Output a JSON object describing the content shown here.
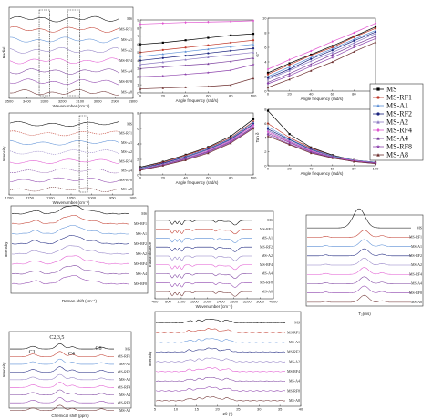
{
  "samples": [
    "MS",
    "MS-RF1",
    "MS-A1",
    "MS-RF2",
    "MS-A2",
    "MS-RF4",
    "MS-A4",
    "MS-RF8",
    "MS-A8"
  ],
  "colors": [
    "#000000",
    "#c0392b",
    "#5b8fd6",
    "#1a237e",
    "#8e7cc3",
    "#e056d0",
    "#7b3f9e",
    "#8e44ad",
    "#6d2f2f"
  ],
  "markers": [
    "square",
    "circle",
    "triangle",
    "circle",
    "triangle",
    "diamond",
    "triangle",
    "star",
    "triangle"
  ],
  "legend": {
    "entries": [
      "MS",
      "MS-RF1",
      "MS-A1",
      "MS-RF2",
      "MS-A2",
      "MS-RF4",
      "MS-A4",
      "MS-RF8",
      "MS-A8"
    ]
  },
  "chart_data": [
    {
      "id": "p1",
      "type": "line",
      "ylabel": "Radial",
      "series_labels": [
        "MS",
        "MS-RF1",
        "MS-A1",
        "MS-A2",
        "MS-RF4",
        "MS-A4",
        "MS-RF8",
        "MS-A8"
      ],
      "xlim": [
        3500,
        2800
      ],
      "xticks": [
        3500,
        3400,
        3300,
        3200,
        3100,
        3000,
        2900,
        2800
      ],
      "xlabel": "Wavenumber (cm⁻¹)",
      "highlight_boxes": [
        [
          3330,
          3270
        ],
        [
          3170,
          3100
        ]
      ]
    },
    {
      "id": "p2",
      "type": "line",
      "xlim": [
        0,
        100
      ],
      "ylim": [
        0,
        9
      ],
      "xticks": [
        0,
        20,
        40,
        60,
        80,
        100
      ],
      "yticks": [
        0,
        1,
        2,
        3,
        4,
        5,
        6,
        7,
        8,
        9
      ],
      "xlabel": "Angle frequency (rad/s)",
      "series": [
        {
          "name": "MS",
          "values": [
            6.0,
            6.2,
            6.5,
            6.8,
            7.1,
            7.3
          ]
        },
        {
          "name": "MS-RF1",
          "values": [
            5.0,
            5.3,
            5.6,
            5.9,
            6.2,
            6.5
          ]
        },
        {
          "name": "MS-A1",
          "values": [
            4.5,
            4.8,
            5.1,
            5.4,
            5.7,
            6.0
          ]
        },
        {
          "name": "MS-RF2",
          "values": [
            4.0,
            4.3,
            4.6,
            4.9,
            5.2,
            5.5
          ]
        },
        {
          "name": "MS-A2",
          "values": [
            3.5,
            3.8,
            4.1,
            4.4,
            4.7,
            5.0
          ]
        },
        {
          "name": "MS-RF4",
          "values": [
            8.5,
            8.6,
            8.7,
            8.75,
            8.8,
            8.9
          ]
        },
        {
          "name": "MS-A4",
          "values": [
            3.0,
            3.2,
            3.4,
            3.6,
            3.9,
            4.3
          ]
        },
        {
          "name": "MS-RF8",
          "values": [
            2.0,
            2.1,
            2.3,
            2.5,
            2.8,
            3.5
          ]
        },
        {
          "name": "MS-A8",
          "values": [
            0.5,
            0.6,
            0.7,
            0.8,
            1.0,
            1.8
          ]
        }
      ]
    },
    {
      "id": "p3",
      "type": "line",
      "xlim": [
        0,
        100
      ],
      "ylim": [
        0,
        10
      ],
      "xticks": [
        0,
        20,
        40,
        60,
        80,
        100
      ],
      "yticks": [
        0,
        2,
        4,
        6,
        8,
        10
      ],
      "ylabel": "G''",
      "xlabel": "Angle frequency (rad/s)",
      "series": [
        {
          "name": "MS",
          "values": [
            2.5,
            3.8,
            5.0,
            6.2,
            7.5,
            8.8
          ]
        },
        {
          "name": "MS-RF1",
          "values": [
            2.3,
            3.6,
            4.9,
            6.0,
            7.4,
            8.6
          ]
        },
        {
          "name": "MS-A1",
          "values": [
            2.0,
            3.3,
            4.6,
            5.8,
            7.1,
            8.3
          ]
        },
        {
          "name": "MS-RF2",
          "values": [
            1.8,
            3.0,
            4.4,
            5.6,
            6.9,
            8.1
          ]
        },
        {
          "name": "MS-A2",
          "values": [
            1.6,
            2.8,
            4.1,
            5.3,
            6.6,
            7.9
          ]
        },
        {
          "name": "MS-RF4",
          "values": [
            3.0,
            4.3,
            5.5,
            6.8,
            8.0,
            9.3
          ]
        },
        {
          "name": "MS-A4",
          "values": [
            1.2,
            2.4,
            3.7,
            5.0,
            6.3,
            7.5
          ]
        },
        {
          "name": "MS-RF8",
          "values": [
            1.0,
            2.1,
            3.4,
            4.6,
            6.0,
            7.2
          ]
        },
        {
          "name": "MS-A8",
          "values": [
            0.5,
            1.6,
            2.8,
            4.0,
            5.4,
            6.7
          ]
        }
      ]
    },
    {
      "id": "p4",
      "type": "line",
      "ylabel": "Intensity",
      "series_labels": [
        "MS",
        "MS-RF1",
        "MS-A1",
        "MS-A2",
        "MS-RF4",
        "MS-A4",
        "MS-RF8",
        "MS-A8"
      ],
      "xlim": [
        1200,
        900
      ],
      "xticks": [
        1200,
        1150,
        1100,
        1050,
        1000,
        950,
        900
      ],
      "xlabel": "Wavenumber (cm⁻¹)",
      "highlight_boxes": [
        [
          1030,
          1010
        ]
      ]
    },
    {
      "id": "p5",
      "type": "line",
      "xlim": [
        0,
        100
      ],
      "ylim": [
        0,
        8
      ],
      "xticks": [
        0,
        20,
        40,
        60,
        80,
        100
      ],
      "yticks": [
        0,
        2,
        4,
        6,
        8
      ],
      "xlabel": "Angle frequency (rad/s)",
      "series": [
        {
          "name": "MS",
          "values": [
            1.0,
            1.7,
            2.6,
            3.6,
            5.0,
            7.2
          ]
        },
        {
          "name": "MS-RF1",
          "values": [
            0.9,
            1.6,
            2.5,
            3.5,
            4.8,
            6.9
          ]
        },
        {
          "name": "MS-A1",
          "values": [
            0.9,
            1.5,
            2.4,
            3.4,
            4.7,
            6.8
          ]
        },
        {
          "name": "MS-RF2",
          "values": [
            0.8,
            1.5,
            2.3,
            3.3,
            4.6,
            6.6
          ]
        },
        {
          "name": "MS-A2",
          "values": [
            0.8,
            1.4,
            2.2,
            3.2,
            4.5,
            6.5
          ]
        },
        {
          "name": "MS-RF4",
          "values": [
            0.7,
            1.3,
            2.1,
            3.1,
            4.4,
            6.4
          ]
        },
        {
          "name": "MS-A4",
          "values": [
            0.7,
            1.3,
            2.1,
            3.0,
            4.3,
            6.2
          ]
        },
        {
          "name": "MS-RF8",
          "values": [
            0.6,
            1.2,
            2.0,
            2.9,
            4.2,
            6.1
          ]
        },
        {
          "name": "MS-A8",
          "values": [
            0.6,
            1.2,
            1.9,
            2.8,
            4.1,
            6.0
          ]
        }
      ]
    },
    {
      "id": "p6",
      "type": "line",
      "xlim": [
        0,
        100
      ],
      "ylim": [
        0,
        8
      ],
      "xticks": [
        0,
        20,
        40,
        60,
        80,
        100
      ],
      "yticks": [
        0,
        2,
        4,
        6,
        8
      ],
      "ylabel": "Tan δ",
      "xlabel": "Angle frequency (rad/s)",
      "series": [
        {
          "name": "MS",
          "values": [
            7.8,
            4.5,
            2.6,
            1.5,
            0.8,
            0.5
          ]
        },
        {
          "name": "MS-RF1",
          "values": [
            6.0,
            4.0,
            2.5,
            1.4,
            0.8,
            0.5
          ]
        },
        {
          "name": "MS-A1",
          "values": [
            5.5,
            3.8,
            2.4,
            1.4,
            0.8,
            0.5
          ]
        },
        {
          "name": "MS-RF2",
          "values": [
            5.2,
            3.7,
            2.3,
            1.3,
            0.7,
            0.4
          ]
        },
        {
          "name": "MS-A2",
          "values": [
            5.0,
            3.5,
            2.2,
            1.3,
            0.7,
            0.4
          ]
        },
        {
          "name": "MS-RF4",
          "values": [
            4.8,
            3.4,
            2.1,
            1.2,
            0.7,
            0.4
          ]
        },
        {
          "name": "MS-A4",
          "values": [
            4.6,
            3.3,
            2.0,
            1.2,
            0.6,
            0.4
          ]
        },
        {
          "name": "MS-RF8",
          "values": [
            4.4,
            3.1,
            1.9,
            1.1,
            0.6,
            0.3
          ]
        },
        {
          "name": "MS-A8",
          "values": [
            4.2,
            3.0,
            1.8,
            1.1,
            0.6,
            0.3
          ]
        }
      ]
    },
    {
      "id": "p7",
      "type": "line",
      "ylabel": "Intensity",
      "xlabel": "Raman shift (cm⁻¹)",
      "series_labels": [
        "MS",
        "MS-RF1",
        "MS-A1",
        "MS-RF2",
        "MS-A2",
        "MS-RF4",
        "MS-A4",
        "MS-RF8"
      ],
      "xlim": [
        200,
        1800
      ]
    },
    {
      "id": "p8",
      "type": "line",
      "ylabel": "Transmittance",
      "xlabel": "Wavenumber (cm⁻¹)",
      "series_labels": [
        "MS",
        "MS-RF1",
        "MS-A1",
        "MS-RF2",
        "MS-A2",
        "MS-RF4",
        "MS-A4",
        "MS-RF8",
        "MS-A8"
      ],
      "xlim": [
        400,
        4000
      ],
      "xticks": [
        400,
        800,
        1200,
        1600,
        2000,
        2400,
        2800,
        3200,
        3600,
        4000
      ]
    },
    {
      "id": "p9",
      "type": "line",
      "xlabel": "T₂(ms)",
      "series_labels": [
        "MS",
        "MS-RF1",
        "MS-A1",
        "MS-RF2",
        "MS-A2",
        "MS-RF4",
        "MS-A4",
        "MS-RF8",
        "MS-A8"
      ],
      "xlim": [
        0.1,
        10000
      ],
      "xscale": "log"
    },
    {
      "id": "p10",
      "type": "line",
      "ylabel": "Intensity",
      "xlabel": "Chemical shift (ppm)",
      "peak_labels": [
        "C1",
        "C2,3,5",
        "C4",
        "C6"
      ],
      "series_labels": [
        "MS",
        "MS-RF1",
        "MS-A1",
        "MS-RF2",
        "MS-A2",
        "MS-RF4",
        "MS-A4",
        "MS-RF8",
        "MS-A8"
      ],
      "xlim": [
        110,
        50
      ]
    },
    {
      "id": "p11",
      "type": "line",
      "ylabel": "Intensity",
      "xlabel": "2θ (°)",
      "series_labels": [
        "MS",
        "MS-RF1",
        "MS-A1",
        "MS-RF2",
        "MS-A2",
        "MS-RF4",
        "MS-A4",
        "MS-RF8",
        "MS-A8"
      ],
      "xlim": [
        5,
        40
      ],
      "xticks": [
        5,
        10,
        15,
        20,
        25,
        30,
        35,
        40
      ]
    }
  ]
}
